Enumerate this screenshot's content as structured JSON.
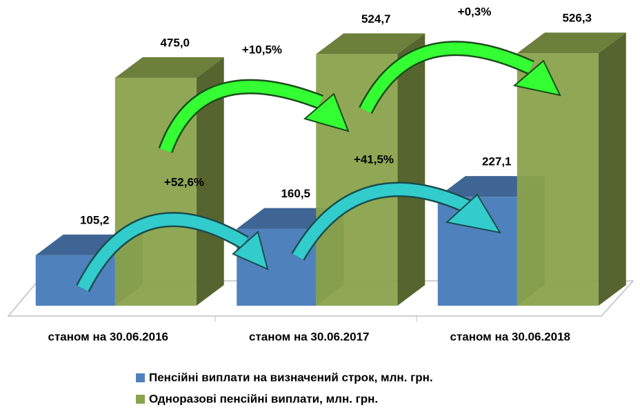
{
  "chart_data": {
    "type": "bar3d",
    "categories": [
      "станом на 30.06.2016",
      "станом на 30.06.2017",
      "станом на 30.06.2018"
    ],
    "series": [
      {
        "name": "Пенсійні виплати на визначений строк, млн. грн.",
        "color": "#4f81bd",
        "values": [
          105.2,
          160.5,
          227.1
        ],
        "value_labels": [
          "105,2",
          "160,5",
          "227,1"
        ]
      },
      {
        "name": "Одноразові пенсійні виплати, млн. грн.",
        "color": "#8aa34c",
        "values": [
          475.0,
          524.7,
          526.3
        ],
        "value_labels": [
          "475,0",
          "524,7",
          "526,3"
        ]
      }
    ],
    "ylim": [
      0,
      600
    ],
    "annotations": [
      "+52,6%",
      "+10,5%",
      "+41,5%",
      "+0,3%"
    ]
  }
}
